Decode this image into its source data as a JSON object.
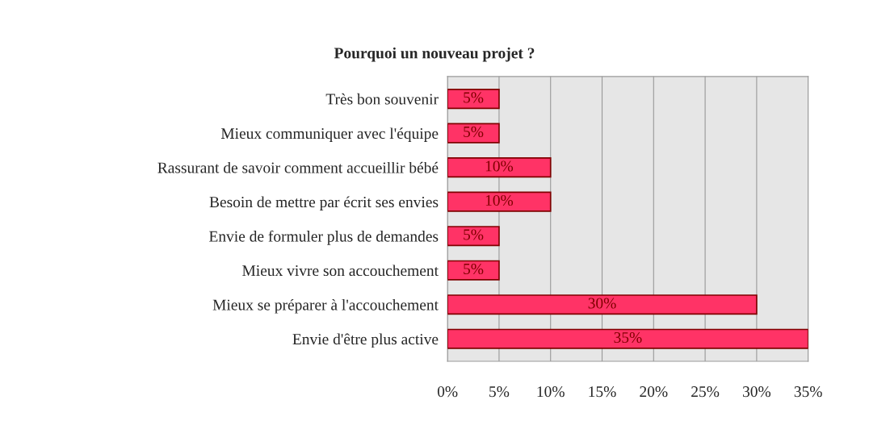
{
  "chart_data": {
    "type": "bar",
    "orientation": "horizontal",
    "title": "Pourquoi un nouveau projet ?",
    "categories": [
      "Très bon souvenir",
      "Mieux communiquer avec l'équipe",
      "Rassurant de savoir comment accueillir bébé",
      "Besoin de mettre par écrit ses envies",
      "Envie de formuler plus de demandes",
      "Mieux vivre son accouchement",
      "Mieux se préparer à l'accouchement",
      "Envie d'être plus active"
    ],
    "values": [
      5,
      5,
      10,
      10,
      5,
      5,
      30,
      35
    ],
    "value_labels": [
      "5%",
      "5%",
      "10%",
      "10%",
      "5%",
      "5%",
      "30%",
      "35%"
    ],
    "color": "#ff3366",
    "xlim": [
      0,
      35
    ],
    "xticks": [
      {
        "value": 0,
        "label": "0%"
      },
      {
        "value": 5,
        "label": "5%"
      },
      {
        "value": 10,
        "label": "10%"
      },
      {
        "value": 15,
        "label": "15%"
      },
      {
        "value": 20,
        "label": "20%"
      },
      {
        "value": 25,
        "label": "25%"
      },
      {
        "value": 30,
        "label": "30%"
      },
      {
        "value": 35,
        "label": "35%"
      }
    ],
    "grid": "x"
  }
}
